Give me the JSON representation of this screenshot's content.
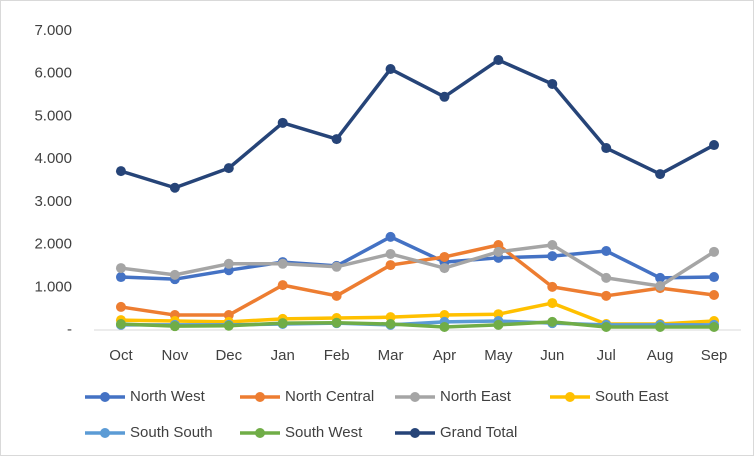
{
  "chart_data": {
    "type": "line",
    "categories": [
      "Oct",
      "Nov",
      "Dec",
      "Jan",
      "Feb",
      "Mar",
      "Apr",
      "May",
      "Jun",
      "Jul",
      "Aug",
      "Sep"
    ],
    "series": [
      {
        "name": "North West",
        "color": "#4472c4",
        "values": [
          1240,
          1190,
          1400,
          1590,
          1500,
          2180,
          1590,
          1690,
          1730,
          1850,
          1220,
          1240
        ]
      },
      {
        "name": "North Central",
        "color": "#ed7d31",
        "values": [
          540,
          350,
          350,
          1050,
          800,
          1520,
          1710,
          1990,
          1010,
          800,
          980,
          820
        ]
      },
      {
        "name": "North East",
        "color": "#a5a5a5",
        "values": [
          1450,
          1290,
          1550,
          1550,
          1480,
          1780,
          1450,
          1830,
          1990,
          1220,
          1030,
          1830
        ]
      },
      {
        "name": "South East",
        "color": "#ffc000",
        "values": [
          230,
          210,
          190,
          260,
          280,
          300,
          350,
          370,
          630,
          140,
          140,
          210
        ]
      },
      {
        "name": "South South",
        "color": "#5b9bd5",
        "values": [
          120,
          120,
          120,
          140,
          160,
          120,
          190,
          210,
          160,
          120,
          120,
          120
        ]
      },
      {
        "name": "South West",
        "color": "#70ad47",
        "values": [
          140,
          90,
          100,
          160,
          170,
          140,
          70,
          120,
          190,
          70,
          70,
          70
        ]
      },
      {
        "name": "Grand Total",
        "color": "#264478",
        "values": [
          3720,
          3330,
          3790,
          4850,
          4470,
          6110,
          5460,
          6320,
          5760,
          4260,
          3650,
          4330
        ]
      }
    ],
    "ylim": [
      0,
      7000
    ],
    "yticks": [
      {
        "value": 0,
        "label": "-"
      },
      {
        "value": 1000,
        "label": "1.000"
      },
      {
        "value": 2000,
        "label": "2.000"
      },
      {
        "value": 3000,
        "label": "3.000"
      },
      {
        "value": 4000,
        "label": "4.000"
      },
      {
        "value": 5000,
        "label": "5.000"
      },
      {
        "value": 6000,
        "label": "6.000"
      },
      {
        "value": 7000,
        "label": "7.000"
      }
    ],
    "grid": false,
    "legend": "bottom"
  }
}
